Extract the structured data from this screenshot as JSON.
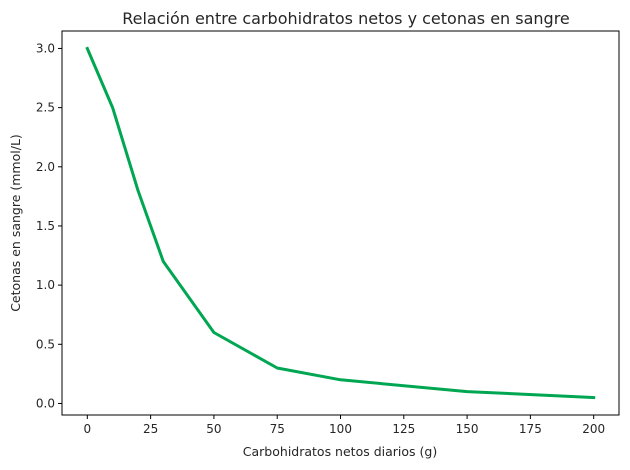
{
  "chart_data": {
    "type": "line",
    "title": "Relación entre carbohidratos netos y cetonas en sangre",
    "xlabel": "Carbohidratos netos diarios (g)",
    "ylabel": "Cetonas en sangre (mmol/L)",
    "x": [
      0,
      10,
      20,
      30,
      50,
      75,
      100,
      150,
      200
    ],
    "series": [
      {
        "values": [
          3.0,
          2.5,
          1.8,
          1.2,
          0.6,
          0.3,
          0.2,
          0.1,
          0.05
        ],
        "color": "#00a651"
      }
    ],
    "xlim": [
      -10,
      210
    ],
    "ylim": [
      -0.0975,
      3.1475
    ],
    "xticks": [
      0,
      25,
      50,
      75,
      100,
      125,
      150,
      175,
      200
    ],
    "xtick_labels": [
      "0",
      "25",
      "50",
      "75",
      "100",
      "125",
      "150",
      "175",
      "200"
    ],
    "yticks": [
      0.0,
      0.5,
      1.0,
      1.5,
      2.0,
      2.5,
      3.0
    ],
    "ytick_labels": [
      "0.0",
      "0.5",
      "1.0",
      "1.5",
      "2.0",
      "2.5",
      "3.0"
    ],
    "grid": false
  }
}
